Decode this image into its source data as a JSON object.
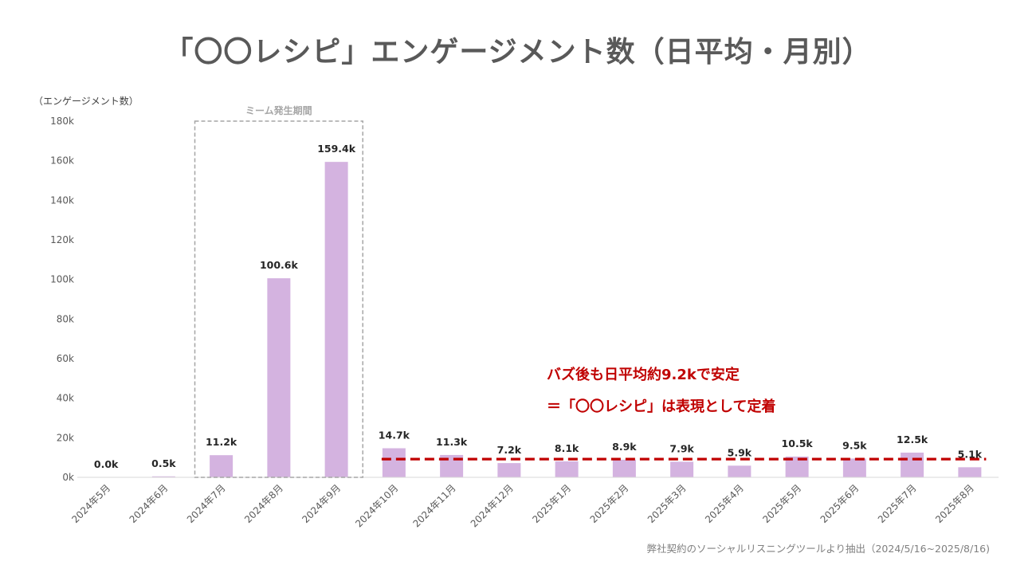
{
  "title": "「〇〇レシピ」エンゲージメント数（日平均・月別）",
  "ylabel": "（エンゲージメント数）",
  "highlight_label": "ミーム発生期間",
  "annotations": {
    "line1": "バズ後も日平均約9.2kで安定",
    "line2": "＝「〇〇レシピ」は表現として定着"
  },
  "source": "弊社契約のソーシャルリスニングツールより抽出（2024/5/16~2025/8/16)",
  "colors": {
    "bar": "#d4b3e0",
    "average_line": "#c00000",
    "highlight_box": "#a6a6a6",
    "axis_text": "#595959",
    "data_label": "#262626"
  },
  "chart_data": {
    "type": "bar",
    "categories": [
      "2024年5月",
      "2024年6月",
      "2024年7月",
      "2024年8月",
      "2024年9月",
      "2024年10月",
      "2024年11月",
      "2024年12月",
      "2025年1月",
      "2025年2月",
      "2025年3月",
      "2025年4月",
      "2025年5月",
      "2025年6月",
      "2025年7月",
      "2025年8月"
    ],
    "values": [
      0.0,
      0.5,
      11.2,
      100.6,
      159.4,
      14.7,
      11.3,
      7.2,
      8.1,
      8.9,
      7.9,
      5.9,
      10.5,
      9.5,
      12.5,
      5.1
    ],
    "value_labels": [
      "0.0k",
      "0.5k",
      "11.2k",
      "100.6k",
      "159.4k",
      "14.7k",
      "11.3k",
      "7.2k",
      "8.1k",
      "8.9k",
      "7.9k",
      "5.9k",
      "10.5k",
      "9.5k",
      "12.5k",
      "5.1k"
    ],
    "ylim": [
      0,
      180
    ],
    "yticks": [
      0,
      20,
      40,
      60,
      80,
      100,
      120,
      140,
      160,
      180
    ],
    "ytick_labels": [
      "0k",
      "20k",
      "40k",
      "60k",
      "80k",
      "100k",
      "120k",
      "140k",
      "160k",
      "180k"
    ],
    "average_value": 9.2,
    "average_from_category": "2024年10月",
    "highlight_categories": [
      "2024年7月",
      "2024年8月",
      "2024年9月"
    ],
    "xlabel": "",
    "grid": false
  }
}
